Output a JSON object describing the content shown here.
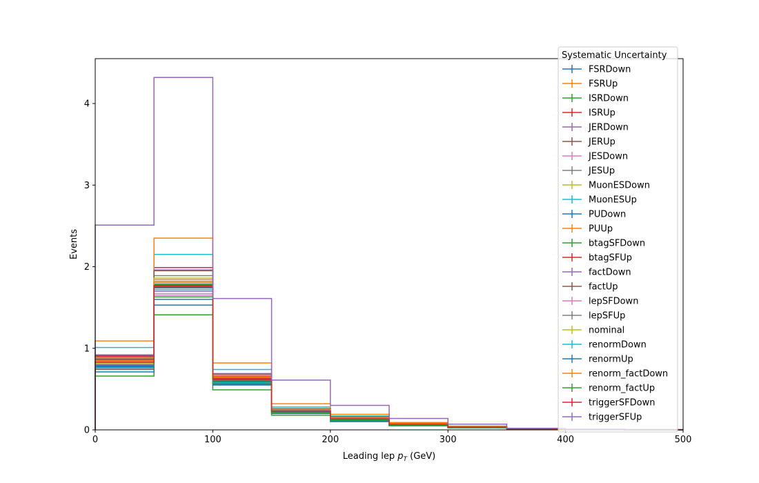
{
  "chart_data": {
    "type": "step",
    "xlabel": "Leading lep",
    "xlabel_math": "p",
    "xlabel_sub": "T",
    "xlabel_unit": "(GeV)",
    "ylabel": "Events",
    "xlim": [
      0,
      500
    ],
    "ylim": [
      0,
      4.55
    ],
    "x_ticks": [
      0,
      100,
      200,
      300,
      400,
      500
    ],
    "y_ticks": [
      0,
      1,
      2,
      3,
      4
    ],
    "bin_edges": [
      0,
      50,
      100,
      150,
      200,
      250,
      300,
      350,
      400,
      450,
      500
    ],
    "grid": false,
    "legend": {
      "title": "Systematic Uncertainty",
      "placement": "top-right"
    },
    "series": [
      {
        "name": "FSRDown",
        "color": "#1f77b4",
        "values": [
          0.77,
          1.53,
          0.56,
          0.21,
          0.12,
          0.06,
          0.03,
          0.01,
          0.005,
          0.0
        ]
      },
      {
        "name": "FSRUp",
        "color": "#ff7f0e",
        "values": [
          0.85,
          1.84,
          0.62,
          0.24,
          0.14,
          0.07,
          0.035,
          0.012,
          0.005,
          0.0
        ]
      },
      {
        "name": "ISRDown",
        "color": "#2ca02c",
        "values": [
          0.66,
          1.41,
          0.49,
          0.18,
          0.1,
          0.05,
          0.025,
          0.01,
          0.004,
          0.0
        ]
      },
      {
        "name": "ISRUp",
        "color": "#d62728",
        "values": [
          0.9,
          1.99,
          0.66,
          0.25,
          0.15,
          0.08,
          0.04,
          0.015,
          0.006,
          0.0
        ]
      },
      {
        "name": "JERDown",
        "color": "#9467bd",
        "values": [
          0.8,
          1.7,
          0.6,
          0.22,
          0.13,
          0.065,
          0.03,
          0.012,
          0.005,
          0.0
        ]
      },
      {
        "name": "JERUp",
        "color": "#8c564b",
        "values": [
          0.83,
          1.75,
          0.61,
          0.23,
          0.13,
          0.065,
          0.03,
          0.012,
          0.005,
          0.0
        ]
      },
      {
        "name": "JESDown",
        "color": "#e377c2",
        "values": [
          0.75,
          1.65,
          0.57,
          0.21,
          0.12,
          0.06,
          0.03,
          0.01,
          0.005,
          0.0
        ]
      },
      {
        "name": "JESUp",
        "color": "#7f7f7f",
        "values": [
          0.88,
          1.89,
          0.65,
          0.25,
          0.14,
          0.07,
          0.035,
          0.013,
          0.005,
          0.0
        ]
      },
      {
        "name": "MuonESDown",
        "color": "#bcbd22",
        "values": [
          0.82,
          1.82,
          0.63,
          0.24,
          0.14,
          0.07,
          0.035,
          0.013,
          0.005,
          0.0
        ]
      },
      {
        "name": "MuonESUp",
        "color": "#17becf",
        "values": [
          1.01,
          2.15,
          0.74,
          0.28,
          0.17,
          0.085,
          0.04,
          0.015,
          0.006,
          0.0
        ]
      },
      {
        "name": "PUDown",
        "color": "#1f77b4",
        "values": [
          0.71,
          1.6,
          0.55,
          0.2,
          0.11,
          0.055,
          0.025,
          0.01,
          0.004,
          0.0
        ]
      },
      {
        "name": "PUUp",
        "color": "#ff7f0e",
        "values": [
          1.09,
          2.35,
          0.82,
          0.32,
          0.19,
          0.09,
          0.045,
          0.017,
          0.007,
          0.0
        ]
      },
      {
        "name": "btagSFDown",
        "color": "#2ca02c",
        "values": [
          0.79,
          1.78,
          0.6,
          0.22,
          0.13,
          0.065,
          0.03,
          0.012,
          0.005,
          0.0
        ]
      },
      {
        "name": "btagSFUp",
        "color": "#d62728",
        "values": [
          0.86,
          1.76,
          0.63,
          0.24,
          0.14,
          0.07,
          0.035,
          0.013,
          0.005,
          0.0
        ]
      },
      {
        "name": "factDown",
        "color": "#9467bd",
        "values": [
          0.92,
          1.96,
          0.69,
          0.26,
          0.16,
          0.075,
          0.04,
          0.015,
          0.006,
          0.0
        ]
      },
      {
        "name": "factUp",
        "color": "#8c564b",
        "values": [
          0.91,
          1.95,
          0.68,
          0.26,
          0.155,
          0.075,
          0.04,
          0.015,
          0.006,
          0.0
        ]
      },
      {
        "name": "lepSFDown",
        "color": "#e377c2",
        "values": [
          0.84,
          1.67,
          0.59,
          0.22,
          0.13,
          0.065,
          0.03,
          0.012,
          0.005,
          0.0
        ]
      },
      {
        "name": "lepSFUp",
        "color": "#7f7f7f",
        "values": [
          0.87,
          1.79,
          0.64,
          0.24,
          0.14,
          0.07,
          0.035,
          0.013,
          0.005,
          0.0
        ]
      },
      {
        "name": "nominal",
        "color": "#bcbd22",
        "values": [
          0.81,
          1.86,
          0.62,
          0.23,
          0.135,
          0.068,
          0.033,
          0.012,
          0.005,
          0.0
        ]
      },
      {
        "name": "renormDown",
        "color": "#17becf",
        "values": [
          0.76,
          1.72,
          0.58,
          0.22,
          0.125,
          0.06,
          0.03,
          0.011,
          0.005,
          0.0
        ]
      },
      {
        "name": "renormUp",
        "color": "#1f77b4",
        "values": [
          0.78,
          1.74,
          0.59,
          0.22,
          0.13,
          0.062,
          0.03,
          0.011,
          0.005,
          0.0
        ]
      },
      {
        "name": "renorm_factDown",
        "color": "#ff7f0e",
        "values": [
          0.89,
          1.81,
          0.65,
          0.25,
          0.15,
          0.072,
          0.036,
          0.013,
          0.005,
          0.0
        ]
      },
      {
        "name": "renorm_factUp",
        "color": "#2ca02c",
        "values": [
          0.74,
          1.63,
          0.57,
          0.21,
          0.12,
          0.058,
          0.028,
          0.01,
          0.004,
          0.0
        ]
      },
      {
        "name": "triggerSFDown",
        "color": "#d62728",
        "values": [
          0.83,
          1.77,
          0.62,
          0.23,
          0.135,
          0.066,
          0.032,
          0.012,
          0.005,
          0.0
        ]
      },
      {
        "name": "triggerSFUp",
        "color": "#9467bd",
        "values": [
          2.51,
          4.32,
          1.61,
          0.61,
          0.3,
          0.14,
          0.07,
          0.02,
          0.01,
          0.005
        ]
      }
    ]
  }
}
